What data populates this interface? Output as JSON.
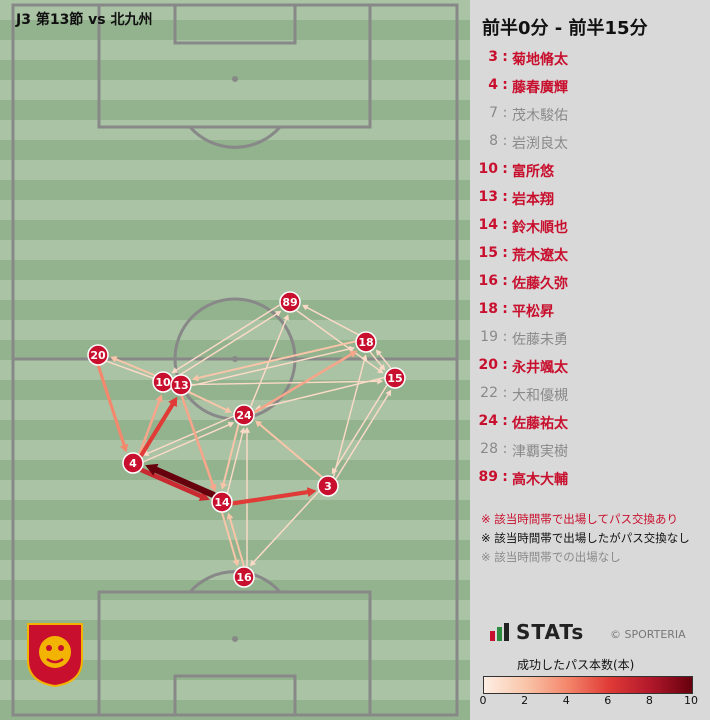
{
  "match_title": "J3 第13節 vs 北九州",
  "period_title": "前半0分 - 前半15分",
  "roster": [
    {
      "num": "3",
      "name": "菊地脩太",
      "status": "played"
    },
    {
      "num": "4",
      "name": "藤春廣輝",
      "status": "played"
    },
    {
      "num": "7",
      "name": "茂木駿佑",
      "status": "bench"
    },
    {
      "num": "8",
      "name": "岩渕良太",
      "status": "bench"
    },
    {
      "num": "10",
      "name": "富所悠",
      "status": "played"
    },
    {
      "num": "13",
      "name": "岩本翔",
      "status": "played"
    },
    {
      "num": "14",
      "name": "鈴木順也",
      "status": "played"
    },
    {
      "num": "15",
      "name": "荒木遼太",
      "status": "played"
    },
    {
      "num": "16",
      "name": "佐藤久弥",
      "status": "played"
    },
    {
      "num": "18",
      "name": "平松昇",
      "status": "played"
    },
    {
      "num": "19",
      "name": "佐藤未勇",
      "status": "bench"
    },
    {
      "num": "20",
      "name": "永井颯太",
      "status": "played"
    },
    {
      "num": "22",
      "name": "大和優槻",
      "status": "bench"
    },
    {
      "num": "24",
      "name": "佐藤祐太",
      "status": "played"
    },
    {
      "num": "28",
      "name": "津覇実樹",
      "status": "bench"
    },
    {
      "num": "89",
      "name": "高木大輔",
      "status": "played"
    }
  ],
  "legend": {
    "played_pass": "※ 該当時間帯で出場してパス交換あり",
    "played_no_pass": "※ 該当時間帯で出場したがパス交換なし",
    "not_played": "※ 該当時間帯での出場なし"
  },
  "brand": {
    "logo": "STATs",
    "credit": "© SPORTERIA"
  },
  "scale": {
    "title": "成功したパス本数(本)",
    "ticks": [
      "0",
      "2",
      "4",
      "6",
      "8",
      "10"
    ],
    "min": 0,
    "max": 10
  },
  "colors": {
    "played": "#c8102e",
    "bench": "#8a8a8a",
    "node_fill": "#c8102e",
    "pitch_light": "#a9c3a4",
    "pitch_dark": "#92b38d"
  },
  "chart_data": {
    "type": "pass-network",
    "players": [
      "3",
      "4",
      "10",
      "13",
      "14",
      "15",
      "16",
      "18",
      "20",
      "24",
      "89"
    ],
    "passes": [
      {
        "from": "14",
        "to": "4",
        "count": 10
      },
      {
        "from": "4",
        "to": "14",
        "count": 7
      },
      {
        "from": "14",
        "to": "3",
        "count": 6
      },
      {
        "from": "4",
        "to": "13",
        "count": 6
      },
      {
        "from": "20",
        "to": "4",
        "count": 4
      },
      {
        "from": "4",
        "to": "10",
        "count": 3
      },
      {
        "from": "13",
        "to": "14",
        "count": 3
      },
      {
        "from": "24",
        "to": "18",
        "count": 3
      },
      {
        "from": "14",
        "to": "16",
        "count": 2
      },
      {
        "from": "16",
        "to": "14",
        "count": 2
      },
      {
        "from": "10",
        "to": "20",
        "count": 2
      },
      {
        "from": "18",
        "to": "13",
        "count": 2
      },
      {
        "from": "3",
        "to": "24",
        "count": 2
      },
      {
        "from": "13",
        "to": "24",
        "count": 2
      },
      {
        "from": "24",
        "to": "14",
        "count": 2
      },
      {
        "from": "15",
        "to": "18",
        "count": 1
      },
      {
        "from": "18",
        "to": "15",
        "count": 1
      },
      {
        "from": "15",
        "to": "3",
        "count": 1
      },
      {
        "from": "3",
        "to": "15",
        "count": 1
      },
      {
        "from": "89",
        "to": "10",
        "count": 1
      },
      {
        "from": "18",
        "to": "89",
        "count": 1
      },
      {
        "from": "89",
        "to": "15",
        "count": 1
      },
      {
        "from": "24",
        "to": "89",
        "count": 1
      },
      {
        "from": "20",
        "to": "13",
        "count": 1
      },
      {
        "from": "13",
        "to": "18",
        "count": 1
      },
      {
        "from": "15",
        "to": "24",
        "count": 1
      },
      {
        "from": "24",
        "to": "4",
        "count": 1
      },
      {
        "from": "3",
        "to": "16",
        "count": 1
      },
      {
        "from": "16",
        "to": "24",
        "count": 1
      },
      {
        "from": "10",
        "to": "15",
        "count": 1
      },
      {
        "from": "4",
        "to": "24",
        "count": 1
      },
      {
        "from": "3",
        "to": "18",
        "count": 1
      },
      {
        "from": "14",
        "to": "24",
        "count": 1
      },
      {
        "from": "10",
        "to": "89",
        "count": 1
      }
    ]
  }
}
